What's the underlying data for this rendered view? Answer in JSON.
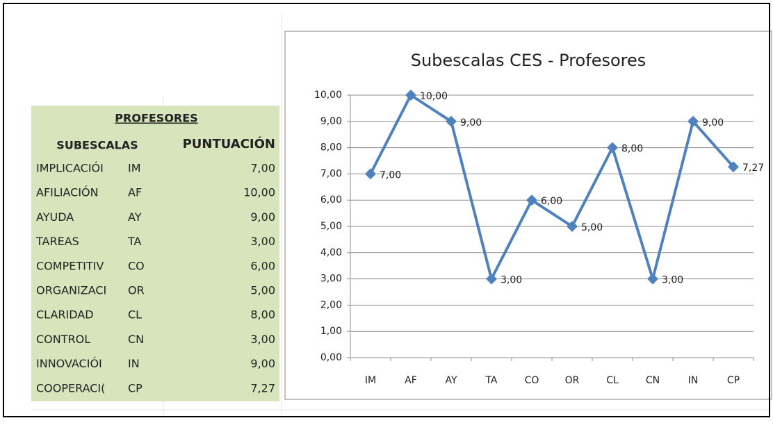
{
  "table": {
    "title": "PROFESORES",
    "header": [
      "SUBESCALAS",
      "PUNTUACIÓN"
    ],
    "rows": [
      [
        "IMPLICACIÓI",
        "IM",
        "7,00"
      ],
      [
        "AFILIACIÓN",
        "AF",
        "10,00"
      ],
      [
        "AYUDA",
        "AY",
        "9,00"
      ],
      [
        "TAREAS",
        "TA",
        "3,00"
      ],
      [
        "COMPETITIV",
        "CO",
        "6,00"
      ],
      [
        "ORGANIZACI",
        "OR",
        "5,00"
      ],
      [
        "CLARIDAD",
        "CL",
        "8,00"
      ],
      [
        "CONTROL",
        "CN",
        "3,00"
      ],
      [
        "INNOVACIÓI",
        "IN",
        "9,00"
      ],
      [
        "COOPERACI(",
        "CP",
        "7,27"
      ]
    ]
  },
  "chart_data": {
    "type": "line",
    "title": "Subescalas CES - Profesores",
    "categories": [
      "IM",
      "AF",
      "AY",
      "TA",
      "CO",
      "OR",
      "CL",
      "CN",
      "IN",
      "CP"
    ],
    "values": [
      7,
      10,
      9,
      3,
      6,
      5,
      8,
      3,
      9,
      7.27
    ],
    "value_labels": [
      "7,00",
      "10,00",
      "9,00",
      "3,00",
      "6,00",
      "5,00",
      "8,00",
      "3,00",
      "9,00",
      "7,27"
    ],
    "color": "#4f81bd",
    "ylim": [
      0,
      10
    ],
    "yticks": [
      {
        "value": 0,
        "label": "0,00"
      },
      {
        "value": 1,
        "label": "1,00"
      },
      {
        "value": 2,
        "label": "2,00"
      },
      {
        "value": 3,
        "label": "3,00"
      },
      {
        "value": 4,
        "label": "4,00"
      },
      {
        "value": 5,
        "label": "5,00"
      },
      {
        "value": 6,
        "label": "6,00"
      },
      {
        "value": 7,
        "label": "7,00"
      },
      {
        "value": 8,
        "label": "8,00"
      },
      {
        "value": 9,
        "label": "9,00"
      },
      {
        "value": 10,
        "label": "10,00"
      }
    ],
    "grid": true
  }
}
